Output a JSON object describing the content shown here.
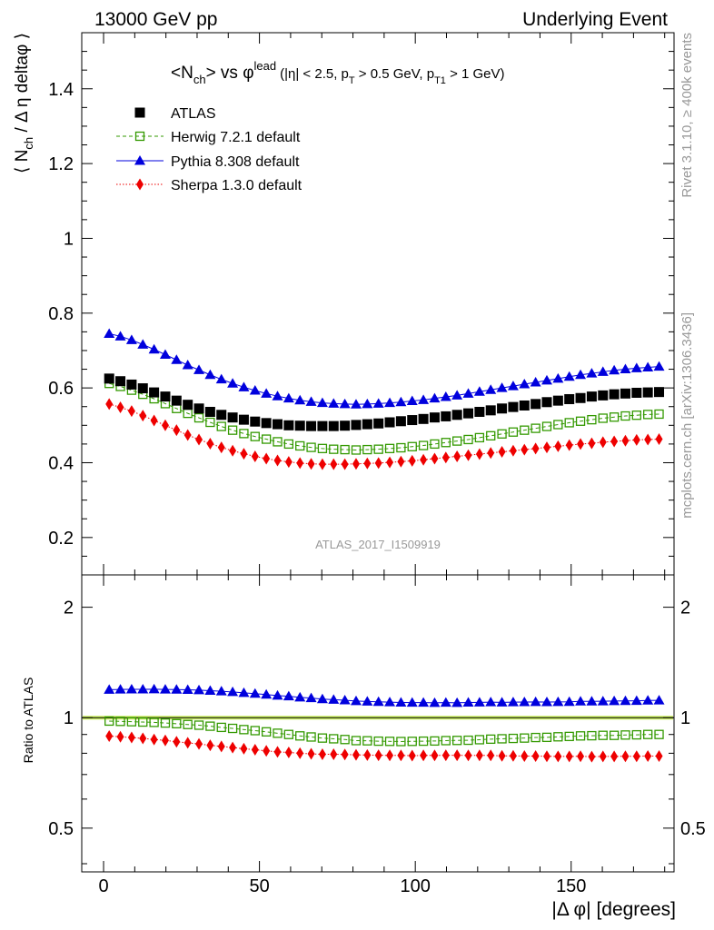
{
  "header": {
    "left": "13000 GeV pp",
    "right": "Underlying Event"
  },
  "side": {
    "rivet": "Rivet 3.1.10, ≥ 400k events",
    "mcplots": "mcplots.cern.ch [arXiv:1306.3436]"
  },
  "plot_title": {
    "main_left": "<N",
    "main_sub": "ch",
    "main_mid": "> vs ",
    "main_phi": "φ",
    "main_sup": "lead",
    "cut_a": "(|η| < 2.5, p",
    "cut_sub1": "T",
    "cut_b": " > 0.5 GeV, p",
    "cut_sub2": "T1",
    "cut_c": " > 1 GeV)"
  },
  "watermark": "ATLAS_2017_I1509919",
  "colors": {
    "atlas": "#000000",
    "herwig": "#339900",
    "pythia": "#0000dd",
    "sherpa": "#ee0000",
    "band": "#ccee66"
  },
  "chart_data": [
    {
      "type": "scatter",
      "panel": "main",
      "xlabel": "|Δ φ| [degrees]",
      "ylabel": "⟨ N_ch / Δ η deltaφ ⟩",
      "xlim": [
        -7,
        183
      ],
      "ylim": [
        0.1,
        1.55
      ],
      "y_ticks": [
        "0.2",
        "0.4",
        "0.6",
        "0.8",
        "1",
        "1.2",
        "1.4"
      ],
      "x": [
        1.8,
        5.4,
        9.0,
        12.6,
        16.2,
        19.8,
        23.4,
        27.0,
        30.6,
        34.2,
        37.8,
        41.4,
        45.0,
        48.6,
        52.2,
        55.8,
        59.4,
        63.0,
        66.6,
        70.2,
        73.8,
        77.4,
        81.0,
        84.6,
        88.2,
        91.8,
        95.4,
        99.0,
        102.6,
        106.2,
        109.8,
        113.4,
        117.0,
        120.6,
        124.2,
        127.8,
        131.4,
        135.0,
        138.6,
        142.2,
        145.8,
        149.4,
        153.0,
        156.6,
        160.2,
        163.8,
        167.4,
        171.0,
        174.6,
        178.2
      ],
      "legend_position": "top-left",
      "series": [
        {
          "name": "ATLAS",
          "marker": "filled-square",
          "values": [
            0.625,
            0.618,
            0.609,
            0.599,
            0.588,
            0.577,
            0.566,
            0.555,
            0.545,
            0.536,
            0.528,
            0.521,
            0.515,
            0.51,
            0.506,
            0.503,
            0.5,
            0.499,
            0.498,
            0.498,
            0.498,
            0.499,
            0.501,
            0.503,
            0.505,
            0.508,
            0.511,
            0.514,
            0.517,
            0.521,
            0.524,
            0.528,
            0.532,
            0.536,
            0.54,
            0.545,
            0.549,
            0.553,
            0.557,
            0.562,
            0.566,
            0.57,
            0.573,
            0.577,
            0.58,
            0.583,
            0.585,
            0.587,
            0.588,
            0.589
          ]
        },
        {
          "name": "Herwig 7.2.1 default",
          "marker": "open-square",
          "values": [
            0.612,
            0.604,
            0.594,
            0.583,
            0.571,
            0.558,
            0.545,
            0.532,
            0.52,
            0.508,
            0.497,
            0.487,
            0.478,
            0.47,
            0.463,
            0.456,
            0.45,
            0.445,
            0.441,
            0.438,
            0.436,
            0.435,
            0.434,
            0.435,
            0.436,
            0.438,
            0.44,
            0.443,
            0.446,
            0.45,
            0.454,
            0.458,
            0.462,
            0.467,
            0.472,
            0.477,
            0.482,
            0.487,
            0.492,
            0.497,
            0.502,
            0.507,
            0.511,
            0.515,
            0.519,
            0.522,
            0.525,
            0.527,
            0.529,
            0.53
          ]
        },
        {
          "name": "Pythia 8.308 default",
          "marker": "filled-triangle",
          "values": [
            0.745,
            0.738,
            0.728,
            0.716,
            0.703,
            0.689,
            0.675,
            0.661,
            0.648,
            0.635,
            0.623,
            0.612,
            0.602,
            0.593,
            0.585,
            0.578,
            0.572,
            0.567,
            0.563,
            0.56,
            0.558,
            0.557,
            0.556,
            0.557,
            0.558,
            0.56,
            0.562,
            0.565,
            0.568,
            0.572,
            0.576,
            0.58,
            0.585,
            0.59,
            0.595,
            0.6,
            0.605,
            0.61,
            0.615,
            0.62,
            0.625,
            0.63,
            0.635,
            0.639,
            0.643,
            0.647,
            0.65,
            0.653,
            0.655,
            0.657
          ]
        },
        {
          "name": "Sherpa 1.3.0 default",
          "marker": "filled-diamond",
          "values": [
            0.557,
            0.548,
            0.538,
            0.526,
            0.513,
            0.5,
            0.487,
            0.474,
            0.462,
            0.451,
            0.441,
            0.432,
            0.424,
            0.417,
            0.411,
            0.406,
            0.402,
            0.399,
            0.397,
            0.396,
            0.396,
            0.396,
            0.397,
            0.398,
            0.399,
            0.401,
            0.403,
            0.405,
            0.408,
            0.411,
            0.414,
            0.417,
            0.42,
            0.423,
            0.426,
            0.429,
            0.432,
            0.435,
            0.438,
            0.441,
            0.444,
            0.447,
            0.45,
            0.452,
            0.455,
            0.457,
            0.459,
            0.461,
            0.462,
            0.463
          ]
        }
      ]
    },
    {
      "type": "scatter",
      "panel": "ratio",
      "scale": "log",
      "xlabel": "|Δ φ| [degrees]",
      "ylabel": "Ratio to ATLAS",
      "xlim": [
        -7,
        183
      ],
      "ylim": [
        0.38,
        2.45
      ],
      "x_ticks": [
        "0",
        "50",
        "100",
        "150"
      ],
      "y_ticks": [
        "0.5",
        "1",
        "2"
      ],
      "reference": 1.0,
      "series": [
        {
          "name": "Herwig 7.2.1 default",
          "values": [
            0.979,
            0.977,
            0.975,
            0.973,
            0.971,
            0.967,
            0.963,
            0.958,
            0.954,
            0.948,
            0.941,
            0.935,
            0.928,
            0.922,
            0.915,
            0.907,
            0.9,
            0.892,
            0.886,
            0.88,
            0.876,
            0.872,
            0.866,
            0.865,
            0.863,
            0.862,
            0.861,
            0.862,
            0.863,
            0.864,
            0.866,
            0.867,
            0.868,
            0.871,
            0.874,
            0.876,
            0.878,
            0.88,
            0.883,
            0.884,
            0.887,
            0.889,
            0.892,
            0.893,
            0.895,
            0.895,
            0.897,
            0.898,
            0.9,
            0.9
          ]
        },
        {
          "name": "Pythia 8.308 default",
          "values": [
            1.192,
            1.194,
            1.195,
            1.195,
            1.196,
            1.194,
            1.193,
            1.191,
            1.189,
            1.185,
            1.18,
            1.175,
            1.169,
            1.163,
            1.156,
            1.149,
            1.144,
            1.136,
            1.131,
            1.124,
            1.12,
            1.116,
            1.11,
            1.107,
            1.105,
            1.102,
            1.1,
            1.099,
            1.099,
            1.098,
            1.099,
            1.098,
            1.1,
            1.101,
            1.102,
            1.101,
            1.102,
            1.103,
            1.104,
            1.103,
            1.104,
            1.105,
            1.108,
            1.108,
            1.109,
            1.11,
            1.111,
            1.112,
            1.114,
            1.115
          ]
        },
        {
          "name": "Sherpa 1.3.0 default",
          "values": [
            0.891,
            0.887,
            0.883,
            0.878,
            0.872,
            0.867,
            0.86,
            0.854,
            0.848,
            0.841,
            0.835,
            0.829,
            0.823,
            0.818,
            0.812,
            0.807,
            0.804,
            0.8,
            0.797,
            0.795,
            0.795,
            0.794,
            0.792,
            0.791,
            0.79,
            0.789,
            0.789,
            0.788,
            0.789,
            0.789,
            0.79,
            0.79,
            0.789,
            0.789,
            0.789,
            0.787,
            0.787,
            0.786,
            0.786,
            0.785,
            0.784,
            0.784,
            0.785,
            0.783,
            0.784,
            0.784,
            0.785,
            0.785,
            0.786,
            0.786
          ]
        }
      ]
    }
  ]
}
